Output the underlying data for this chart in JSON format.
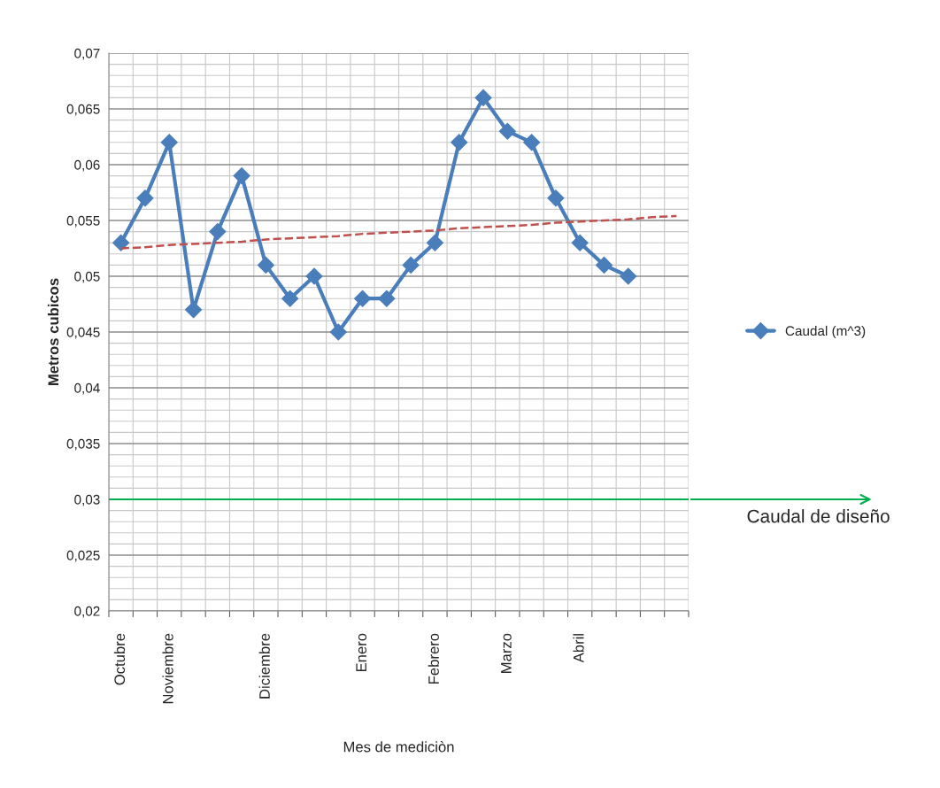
{
  "chart_data": {
    "type": "line",
    "xlabel": "Mes de mediciòn",
    "ylabel": "Metros cubicos",
    "categories": [
      "Octubre",
      null,
      "Noviembre",
      null,
      null,
      null,
      "Diciembre",
      null,
      null,
      null,
      "Enero",
      null,
      null,
      "Febrero",
      null,
      null,
      "Marzo",
      null,
      null,
      "Abril",
      null,
      null,
      null,
      null
    ],
    "series": [
      {
        "name": "Caudal (m^3)",
        "color": "#4a7ebb",
        "marker": "diamond",
        "values": [
          0.053,
          0.057,
          0.062,
          0.047,
          0.054,
          0.059,
          0.051,
          0.048,
          0.05,
          0.045,
          0.048,
          0.048,
          0.051,
          0.053,
          0.062,
          0.066,
          0.063,
          0.062,
          0.057,
          0.053,
          0.051,
          0.05,
          null,
          null
        ]
      },
      {
        "type": "line",
        "color": "#c0504d",
        "line_style": "dashed",
        "marker": "none",
        "values": [
          0.0525,
          0.0526,
          0.0528,
          0.0529,
          0.053,
          0.0531,
          0.0533,
          0.0534,
          0.0535,
          0.0536,
          0.0538,
          0.0539,
          0.054,
          0.0541,
          0.0543,
          0.0544,
          0.0545,
          0.0546,
          0.0548,
          0.0549,
          0.055,
          0.0551,
          0.0553,
          0.0554
        ]
      }
    ],
    "ylim": [
      0.02,
      0.07
    ],
    "yticks": [
      {
        "value": 0.02,
        "label": "0,02"
      },
      {
        "value": 0.025,
        "label": "0,025"
      },
      {
        "value": 0.03,
        "label": "0,03"
      },
      {
        "value": 0.035,
        "label": "0,035"
      },
      {
        "value": 0.04,
        "label": "0,04"
      },
      {
        "value": 0.045,
        "label": "0,045"
      },
      {
        "value": 0.05,
        "label": "0,05"
      },
      {
        "value": 0.055,
        "label": "0,055"
      },
      {
        "value": 0.06,
        "label": "0,06"
      },
      {
        "value": 0.065,
        "label": "0,065"
      },
      {
        "value": 0.07,
        "label": "0,07"
      }
    ],
    "ref_lines": [
      {
        "axis": "y",
        "value": 0.03,
        "label": "Caudal de diseño",
        "color": "#00b050"
      }
    ],
    "grid": true,
    "legend": "right"
  }
}
